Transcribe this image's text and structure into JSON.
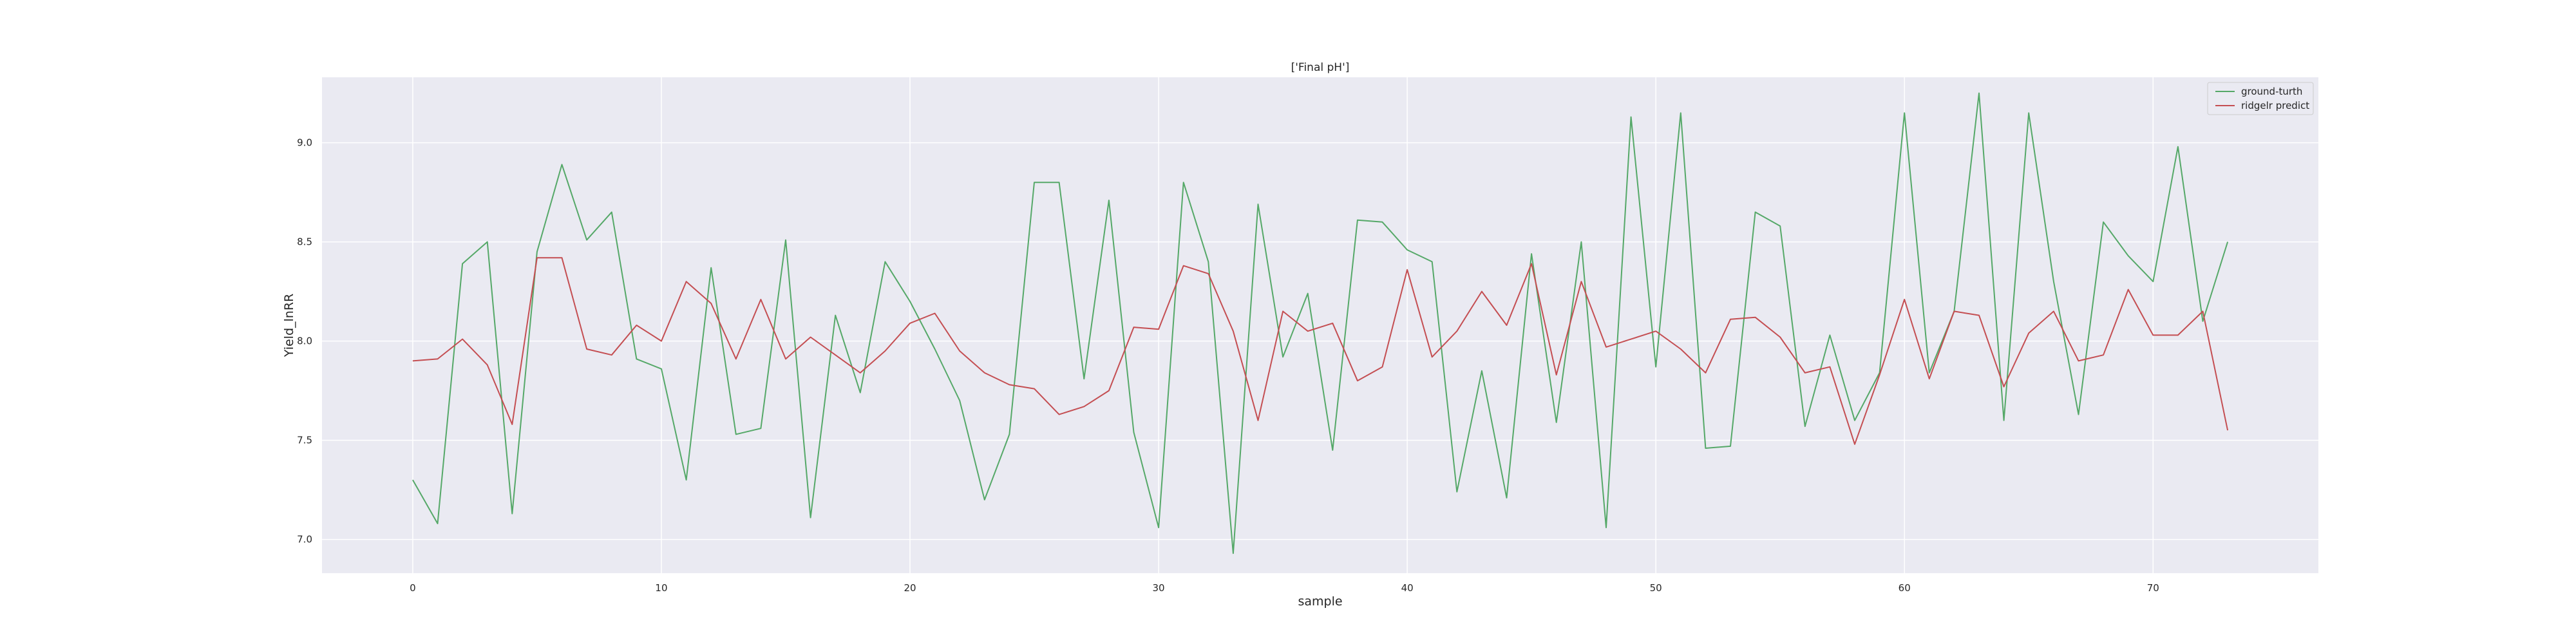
{
  "chart_data": {
    "type": "line",
    "title": "['Final pH']",
    "xlabel": "sample",
    "ylabel": "Yield_lnRR",
    "xlim": [
      -3.65,
      76.65
    ],
    "ylim": [
      6.83,
      9.33
    ],
    "x_ticks": [
      0,
      10,
      20,
      30,
      40,
      50,
      60,
      70
    ],
    "y_ticks": [
      7.0,
      7.5,
      8.0,
      8.5,
      9.0
    ],
    "x_tick_labels": [
      "0",
      "10",
      "20",
      "30",
      "40",
      "50",
      "60",
      "70"
    ],
    "y_tick_labels": [
      "7.0",
      "7.5",
      "8.0",
      "8.5",
      "9.0"
    ],
    "grid": true,
    "legend_position": "top-right",
    "series": [
      {
        "name": "ground-turth",
        "color": "#55a868",
        "values": [
          7.3,
          7.08,
          8.39,
          8.5,
          7.13,
          8.45,
          8.89,
          8.51,
          8.65,
          7.91,
          7.86,
          7.3,
          8.37,
          7.53,
          7.56,
          8.51,
          7.11,
          8.13,
          7.74,
          8.4,
          8.2,
          7.96,
          7.7,
          7.2,
          7.53,
          8.8,
          8.8,
          7.81,
          8.71,
          7.54,
          7.06,
          8.8,
          8.4,
          6.93,
          8.69,
          7.92,
          8.24,
          7.45,
          8.61,
          8.6,
          8.46,
          8.4,
          7.24,
          7.85,
          7.21,
          8.44,
          7.59,
          8.5,
          7.06,
          9.13,
          7.87,
          9.15,
          7.46,
          7.47,
          8.65,
          8.58,
          7.57,
          8.03,
          7.6,
          7.84,
          9.15,
          7.84,
          8.15,
          9.25,
          7.6,
          9.15,
          8.3,
          7.63,
          8.6,
          8.43,
          8.3,
          8.98,
          8.1,
          8.5
        ]
      },
      {
        "name": "ridgelr predict",
        "color": "#c44e52",
        "values": [
          7.9,
          7.91,
          8.01,
          7.88,
          7.58,
          8.42,
          8.42,
          7.96,
          7.93,
          8.08,
          8.0,
          8.3,
          8.19,
          7.91,
          8.21,
          7.91,
          8.02,
          7.93,
          7.84,
          7.95,
          8.09,
          8.14,
          7.95,
          7.84,
          7.78,
          7.76,
          7.63,
          7.67,
          7.75,
          8.07,
          8.06,
          8.38,
          8.34,
          8.05,
          7.6,
          8.15,
          8.05,
          8.09,
          7.8,
          7.87,
          8.36,
          7.92,
          8.05,
          8.25,
          8.08,
          8.39,
          7.83,
          8.3,
          7.97,
          8.01,
          8.05,
          7.96,
          7.84,
          8.11,
          8.12,
          8.02,
          7.84,
          7.87,
          7.48,
          7.83,
          8.21,
          7.81,
          8.15,
          8.13,
          7.77,
          8.04,
          8.15,
          7.9,
          7.93,
          8.26,
          8.03,
          8.03,
          8.15,
          7.55
        ]
      }
    ]
  }
}
